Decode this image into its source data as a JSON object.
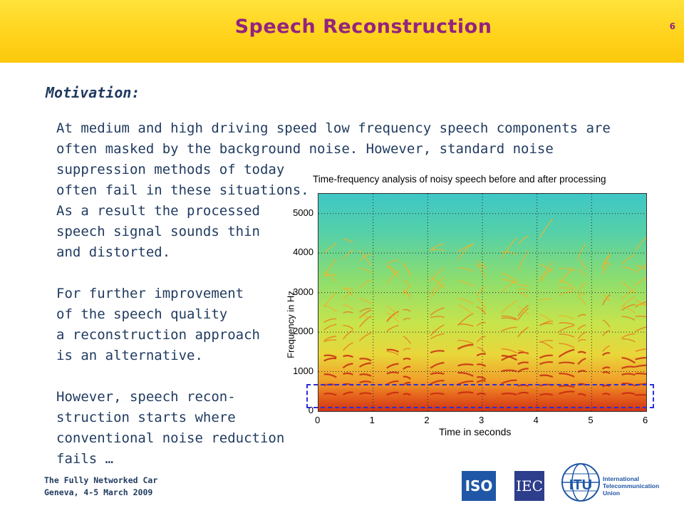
{
  "header": {
    "title": "Speech Reconstruction",
    "slide_number": "6"
  },
  "content": {
    "heading": "Motivation:",
    "paragraph_1": "At medium and high driving speed low frequency speech components are\noften masked by the background noise. However, standard noise",
    "paragraph_left": "suppression methods of today\noften fail in these situations.\nAs a result the processed\nspeech signal sounds thin\nand distorted.\n\nFor further improvement\nof the speech quality\na reconstruction approach\nis an alternative.\n\nHowever, speech recon-\nstruction starts where\nconventional noise reduction\nfails …"
  },
  "figure": {
    "title": "Time-frequency analysis of noisy speech before and after processing",
    "ylabel": "Frequency in Hz",
    "xlabel": "Time in seconds",
    "y_ticks": [
      "0",
      "1000",
      "2000",
      "3000",
      "4000",
      "5000"
    ],
    "x_ticks": [
      "0",
      "1",
      "2",
      "3",
      "4",
      "5",
      "6"
    ],
    "ylim": [
      0,
      5500
    ],
    "xlim": [
      0,
      6
    ],
    "highlight_band_hz": [
      0,
      700
    ]
  },
  "footer": {
    "line1": "The Fully Networked Car",
    "line2": "Geneva, 4-5 March 2009"
  },
  "logos": {
    "iso": "ISO",
    "iec": "IEC",
    "itu_text": "International\nTelecommunication\nUnion"
  },
  "colors": {
    "title": "#94237e",
    "text": "#1f3a5f",
    "header_bg": "#ffd21a",
    "dash_box": "#2c2ed9"
  }
}
